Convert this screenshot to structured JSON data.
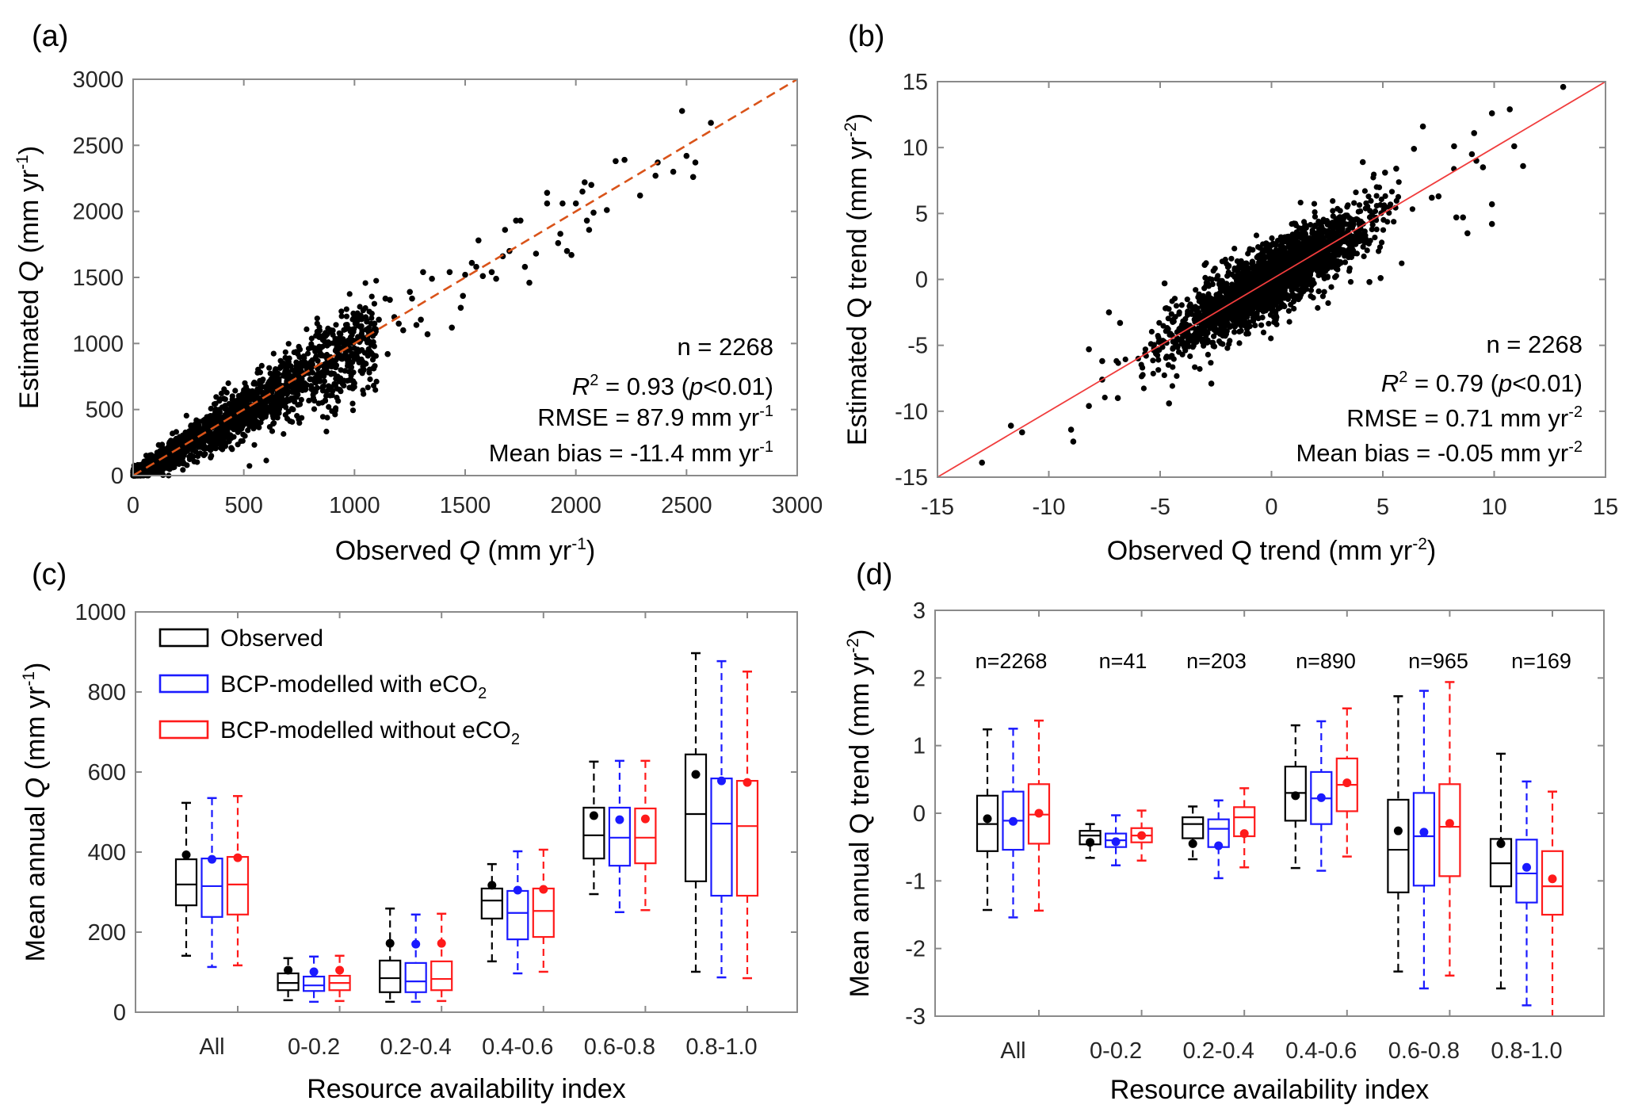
{
  "colors": {
    "observed": "#000000",
    "with_eco2": "#1a1aff",
    "without_eco2": "#ff1a1a",
    "fit_line_a": "#d95319",
    "fit_line_b": "#f03c3c",
    "axis": "#8a8a8a",
    "tick_text": "#262626"
  },
  "chart_data": [
    {
      "id": "a",
      "panel_label": "(a)",
      "type": "scatter",
      "xlabel": {
        "pre": "Observed ",
        "var": "Q",
        "post": " (mm yr",
        "sup": "-1",
        "end": ")"
      },
      "ylabel": {
        "pre": "Estimated ",
        "var": "Q",
        "post": " (mm yr",
        "sup": "-1",
        "end": ")"
      },
      "xlim": [
        0,
        3000
      ],
      "ylim": [
        0,
        3000
      ],
      "xticks": [
        0,
        500,
        1000,
        1500,
        2000,
        2500,
        3000
      ],
      "yticks": [
        0,
        500,
        1000,
        1500,
        2000,
        2500,
        3000
      ],
      "reference_line": {
        "style": "dashed",
        "from": [
          0,
          0
        ],
        "to": [
          3000,
          3000
        ]
      },
      "stats": {
        "n": "n = 2268",
        "r2_value": " = 0.93 (",
        "p": "p",
        "p_rest": "<0.01)",
        "rmse": "RMSE = 87.9 mm yr",
        "rmse_sup": "-1",
        "bias": "Mean bias = -11.4 mm yr",
        "bias_sup": "-1"
      },
      "n_points": 2268,
      "cloud": {
        "x_range": [
          0,
          1100
        ],
        "slope": 0.97,
        "spread_fraction": 0.16
      },
      "points_outliers": [
        [
          2480,
          2760
        ],
        [
          2610,
          2670
        ],
        [
          2500,
          2420
        ],
        [
          2540,
          2370
        ],
        [
          2440,
          2300
        ],
        [
          2530,
          2260
        ],
        [
          2360,
          2270
        ],
        [
          2370,
          2370
        ],
        [
          2180,
          2380
        ],
        [
          2220,
          2390
        ],
        [
          2290,
          2120
        ],
        [
          2070,
          2200
        ],
        [
          2040,
          2220
        ],
        [
          2030,
          2150
        ],
        [
          2000,
          2060
        ],
        [
          2140,
          2010
        ],
        [
          2060,
          1860
        ],
        [
          2080,
          1990
        ],
        [
          2050,
          1930
        ],
        [
          1870,
          2140
        ],
        [
          1870,
          2060
        ],
        [
          1940,
          2060
        ],
        [
          1930,
          1830
        ],
        [
          1960,
          1700
        ],
        [
          1980,
          1670
        ],
        [
          1920,
          1760
        ],
        [
          1790,
          1460
        ],
        [
          1820,
          1680
        ],
        [
          1770,
          1580
        ],
        [
          1730,
          1930
        ],
        [
          1750,
          1930
        ],
        [
          1680,
          1860
        ],
        [
          1700,
          1700
        ],
        [
          1670,
          1660
        ],
        [
          1560,
          1780
        ],
        [
          1530,
          1610
        ],
        [
          1550,
          1580
        ],
        [
          1620,
          1540
        ],
        [
          1640,
          1490
        ],
        [
          1580,
          1510
        ],
        [
          1430,
          1540
        ],
        [
          1440,
          1120
        ],
        [
          1480,
          1270
        ],
        [
          1490,
          1360
        ],
        [
          1500,
          1520
        ],
        [
          1310,
          1540
        ],
        [
          1350,
          1490
        ],
        [
          1330,
          1070
        ],
        [
          1300,
          1180
        ],
        [
          1280,
          1140
        ],
        [
          1250,
          1390
        ],
        [
          1260,
          1340
        ],
        [
          1150,
          920
        ],
        [
          1200,
          1150
        ],
        [
          1160,
          1330
        ],
        [
          1140,
          1340
        ],
        [
          1180,
          1200
        ],
        [
          1110,
          1180
        ],
        [
          1090,
          1150
        ],
        [
          1220,
          1100
        ]
      ]
    },
    {
      "id": "b",
      "panel_label": "(b)",
      "type": "scatter",
      "xlabel": {
        "pre": "Observed Q trend (mm yr",
        "sup": "-2",
        "end": ")"
      },
      "ylabel": {
        "pre": "Estimated Q trend (mm yr",
        "sup": "-2",
        "end": ")"
      },
      "xlim": [
        -15,
        15
      ],
      "ylim": [
        -15,
        15
      ],
      "xticks": [
        -15,
        -10,
        -5,
        0,
        5,
        10,
        15
      ],
      "yticks": [
        -15,
        -10,
        -5,
        0,
        5,
        10,
        15
      ],
      "reference_line": {
        "style": "solid",
        "from": [
          -15,
          -15
        ],
        "to": [
          15,
          15
        ]
      },
      "stats": {
        "n": "n = 2268",
        "r2_value": " = 0.79 (",
        "p": "p",
        "p_rest": "<0.01)",
        "rmse": "RMSE = 0.71 mm yr",
        "rmse_sup": "-2",
        "bias": "Mean bias = -0.05 mm yr",
        "bias_sup": "-2"
      },
      "n_points": 2268,
      "cloud": {
        "x_sd": 2.2,
        "slope": 0.95,
        "noise_sd": 1.3
      },
      "points_outliers": [
        [
          13.1,
          14.6
        ],
        [
          10.7,
          12.9
        ],
        [
          9.9,
          12.6
        ],
        [
          6.8,
          11.6
        ],
        [
          9.1,
          11.1
        ],
        [
          10.9,
          10.1
        ],
        [
          8.2,
          10.1
        ],
        [
          6.4,
          9.9
        ],
        [
          9.0,
          9.5
        ],
        [
          9.2,
          9.0
        ],
        [
          9.5,
          8.5
        ],
        [
          11.3,
          8.6
        ],
        [
          9.9,
          5.7
        ],
        [
          9.9,
          4.2
        ],
        [
          8.8,
          3.5
        ],
        [
          8.3,
          4.7
        ],
        [
          8.6,
          4.7
        ],
        [
          -13.0,
          -13.9
        ],
        [
          -11.7,
          -11.1
        ],
        [
          -11.2,
          -11.6
        ],
        [
          -9.0,
          -11.4
        ],
        [
          -8.9,
          -12.3
        ],
        [
          -8.2,
          -9.6
        ],
        [
          -8.2,
          -5.3
        ],
        [
          -7.6,
          -6.2
        ],
        [
          -7.6,
          -7.6
        ],
        [
          -6.9,
          -9.0
        ],
        [
          -7.3,
          -2.5
        ],
        [
          -6.8,
          -3.3
        ],
        [
          -4.8,
          -0.3
        ],
        [
          -4.6,
          -9.4
        ],
        [
          -3.0,
          1.1
        ],
        [
          4.1,
          8.9
        ],
        [
          5.6,
          8.4
        ],
        [
          5.1,
          8.1
        ],
        [
          7.5,
          6.3
        ],
        [
          7.2,
          6.2
        ],
        [
          4.9,
          0.1
        ],
        [
          4.4,
          -0.2
        ],
        [
          -2.7,
          -7.9
        ]
      ]
    },
    {
      "id": "c",
      "panel_label": "(c)",
      "type": "box",
      "ylabel": {
        "pre": "Mean annual ",
        "var": "Q",
        "post": " (mm yr",
        "sup": "-1",
        "end": ")"
      },
      "xlabel": "Resource availability index",
      "ylim": [
        0,
        1000
      ],
      "yticks": [
        0,
        200,
        400,
        600,
        800,
        1000
      ],
      "categories": [
        "All",
        "0-0.2",
        "0.2-0.4",
        "0.4-0.6",
        "0.6-0.8",
        "0.8-1.0"
      ],
      "legend": {
        "placement": "top-left",
        "items": [
          {
            "label": "Observed",
            "sub": "",
            "color_key": "observed"
          },
          {
            "label": "BCP-modelled with eCO",
            "sub": "2",
            "color_key": "with_eco2"
          },
          {
            "label": "BCP-modelled without eCO",
            "sub": "2",
            "color_key": "without_eco2"
          }
        ]
      },
      "series": [
        {
          "name": "Observed",
          "color_key": "observed",
          "boxes": [
            {
              "low": 141,
              "q1": 267,
              "median": 319,
              "q3": 382,
              "high": 523,
              "mean": 393
            },
            {
              "low": 30,
              "q1": 55,
              "median": 73,
              "q3": 97,
              "high": 135,
              "mean": 105
            },
            {
              "low": 26,
              "q1": 50,
              "median": 85,
              "q3": 129,
              "high": 259,
              "mean": 172
            },
            {
              "low": 127,
              "q1": 234,
              "median": 279,
              "q3": 309,
              "high": 370,
              "mean": 317
            },
            {
              "low": 295,
              "q1": 384,
              "median": 442,
              "q3": 511,
              "high": 626,
              "mean": 491
            },
            {
              "low": 101,
              "q1": 327,
              "median": 495,
              "q3": 644,
              "high": 897,
              "mean": 594
            }
          ]
        },
        {
          "name": "BCP-modelled with eCO2",
          "color_key": "with_eco2",
          "boxes": [
            {
              "low": 113,
              "q1": 238,
              "median": 315,
              "q3": 384,
              "high": 535,
              "mean": 382
            },
            {
              "low": 26,
              "q1": 53,
              "median": 67,
              "q3": 89,
              "high": 139,
              "mean": 101
            },
            {
              "low": 26,
              "q1": 50,
              "median": 77,
              "q3": 123,
              "high": 244,
              "mean": 170
            },
            {
              "low": 97,
              "q1": 182,
              "median": 248,
              "q3": 303,
              "high": 402,
              "mean": 305
            },
            {
              "low": 250,
              "q1": 366,
              "median": 436,
              "q3": 511,
              "high": 628,
              "mean": 481
            },
            {
              "low": 87,
              "q1": 291,
              "median": 471,
              "q3": 584,
              "high": 877,
              "mean": 578
            }
          ]
        },
        {
          "name": "BCP-modelled without eCO2",
          "color_key": "without_eco2",
          "boxes": [
            {
              "low": 117,
              "q1": 244,
              "median": 319,
              "q3": 388,
              "high": 540,
              "mean": 386
            },
            {
              "low": 28,
              "q1": 55,
              "median": 73,
              "q3": 91,
              "high": 141,
              "mean": 105
            },
            {
              "low": 28,
              "q1": 55,
              "median": 83,
              "q3": 127,
              "high": 246,
              "mean": 172
            },
            {
              "low": 101,
              "q1": 188,
              "median": 253,
              "q3": 309,
              "high": 406,
              "mean": 307
            },
            {
              "low": 255,
              "q1": 372,
              "median": 436,
              "q3": 509,
              "high": 628,
              "mean": 483
            },
            {
              "low": 85,
              "q1": 291,
              "median": 465,
              "q3": 578,
              "high": 851,
              "mean": 574
            }
          ]
        }
      ]
    },
    {
      "id": "d",
      "panel_label": "(d)",
      "type": "box",
      "ylabel": {
        "pre": "Mean annual Q trend (mm yr",
        "sup": "-2",
        "end": ")"
      },
      "xlabel": "Resource availability index",
      "ylim": [
        -3,
        3
      ],
      "yticks": [
        -3,
        -2,
        -1,
        0,
        1,
        2,
        3
      ],
      "categories": [
        "All",
        "0-0.2",
        "0.2-0.4",
        "0.4-0.6",
        "0.6-0.8",
        "0.8-1.0"
      ],
      "annotations": [
        "n=2268",
        "n=41",
        "n=203",
        "n=890",
        "n=965",
        "n=169"
      ],
      "series": [
        {
          "name": "Observed",
          "color_key": "observed",
          "boxes": [
            {
              "low": -1.43,
              "q1": -0.56,
              "median": -0.16,
              "q3": 0.26,
              "high": 1.24,
              "mean": -0.08
            },
            {
              "low": -0.66,
              "q1": -0.46,
              "median": -0.33,
              "q3": -0.26,
              "high": -0.16,
              "mean": -0.43
            },
            {
              "low": -0.68,
              "q1": -0.37,
              "median": -0.16,
              "q3": -0.06,
              "high": 0.1,
              "mean": -0.45
            },
            {
              "low": -0.81,
              "q1": -0.11,
              "median": 0.3,
              "q3": 0.69,
              "high": 1.3,
              "mean": 0.26
            },
            {
              "low": -2.34,
              "q1": -1.17,
              "median": -0.54,
              "q3": 0.2,
              "high": 1.73,
              "mean": -0.26
            },
            {
              "low": -2.59,
              "q1": -1.08,
              "median": -0.74,
              "q3": -0.38,
              "high": 0.88,
              "mean": -0.45
            }
          ]
        },
        {
          "name": "BCP-modelled with eCO2",
          "color_key": "with_eco2",
          "boxes": [
            {
              "low": -1.54,
              "q1": -0.54,
              "median": -0.11,
              "q3": 0.32,
              "high": 1.25,
              "mean": -0.12
            },
            {
              "low": -0.77,
              "q1": -0.5,
              "median": -0.4,
              "q3": -0.3,
              "high": -0.03,
              "mean": -0.42
            },
            {
              "low": -0.96,
              "q1": -0.5,
              "median": -0.23,
              "q3": -0.09,
              "high": 0.19,
              "mean": -0.48
            },
            {
              "low": -0.85,
              "q1": -0.16,
              "median": 0.22,
              "q3": 0.61,
              "high": 1.36,
              "mean": 0.23
            },
            {
              "low": -2.59,
              "q1": -1.07,
              "median": -0.34,
              "q3": 0.3,
              "high": 1.81,
              "mean": -0.28
            },
            {
              "low": -2.84,
              "q1": -1.32,
              "median": -0.89,
              "q3": -0.39,
              "high": 0.47,
              "mean": -0.8
            }
          ]
        },
        {
          "name": "BCP-modelled without eCO2",
          "color_key": "without_eco2",
          "boxes": [
            {
              "low": -1.44,
              "q1": -0.45,
              "median": -0.02,
              "q3": 0.43,
              "high": 1.37,
              "mean": 0.0
            },
            {
              "low": -0.7,
              "q1": -0.43,
              "median": -0.33,
              "q3": -0.22,
              "high": 0.04,
              "mean": -0.33
            },
            {
              "low": -0.8,
              "q1": -0.34,
              "median": -0.06,
              "q3": 0.09,
              "high": 0.37,
              "mean": -0.3
            },
            {
              "low": -0.64,
              "q1": 0.03,
              "median": 0.42,
              "q3": 0.81,
              "high": 1.55,
              "mean": 0.45
            },
            {
              "low": -2.4,
              "q1": -0.93,
              "median": -0.2,
              "q3": 0.43,
              "high": 1.94,
              "mean": -0.15
            },
            {
              "low": -3.0,
              "q1": -1.5,
              "median": -1.08,
              "q3": -0.56,
              "high": 0.32,
              "mean": -0.97
            }
          ]
        }
      ]
    }
  ]
}
